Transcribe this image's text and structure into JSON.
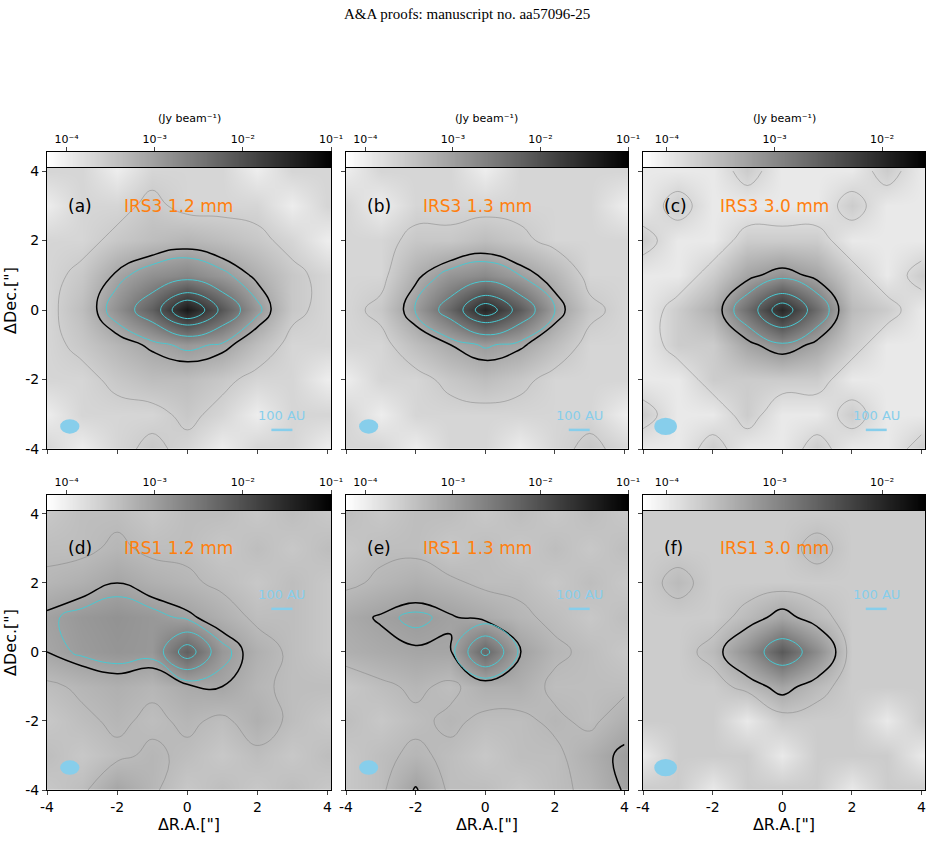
{
  "header": "A&A proofs: manuscript no. aa57096-25",
  "chart_data": [
    {
      "type": "heatmap",
      "panel_label": "(a)",
      "title": "IRS3 1.2 mm",
      "x": [
        -4,
        -3,
        -2,
        -1,
        0,
        1,
        2,
        3,
        4
      ],
      "y": [
        -4,
        -3,
        -2,
        -1,
        0,
        1,
        2,
        3,
        4
      ],
      "z": [
        [
          0.0002,
          0.0001,
          0.0002,
          0.0003,
          0.0002,
          0.0001,
          0.0002,
          0.0002,
          0.0001
        ],
        [
          0.0001,
          0.0002,
          0.0002,
          0.0002,
          0.0003,
          0.0002,
          0.0001,
          0.0002,
          0.0002
        ],
        [
          0.0002,
          0.0002,
          0.0003,
          0.0004,
          0.0004,
          0.0003,
          0.0002,
          0.0002,
          0.0001
        ],
        [
          0.0002,
          0.0003,
          0.0005,
          0.0008,
          0.0012,
          0.0009,
          0.0004,
          0.0002,
          0.0002
        ],
        [
          0.0002,
          0.0004,
          0.0015,
          0.006,
          0.05,
          0.008,
          0.0012,
          0.0003,
          0.0002
        ],
        [
          0.0002,
          0.0003,
          0.0008,
          0.0015,
          0.002,
          0.0012,
          0.0006,
          0.0003,
          0.0002
        ],
        [
          0.0002,
          0.0002,
          0.0003,
          0.0004,
          0.0005,
          0.0004,
          0.0003,
          0.0002,
          0.0001
        ],
        [
          0.0001,
          0.0002,
          0.0002,
          0.0003,
          0.0002,
          0.0002,
          0.0002,
          0.0001,
          0.0002
        ],
        [
          0.0002,
          0.0002,
          0.0001,
          0.0002,
          0.0002,
          0.0002,
          0.0001,
          0.0002,
          0.0002
        ]
      ],
      "xlim": [
        -4,
        4.1
      ],
      "ylim": [
        -4,
        4.55
      ],
      "xticks": [
        -4,
        -2,
        0,
        2,
        4
      ],
      "yticks": [
        -4,
        -2,
        0,
        2,
        4
      ],
      "y_label": "ΔDec.[\"]",
      "tick_labels": "y",
      "colorbar_title": "(Jy beam⁻¹)",
      "colorbar_range": [
        6e-05,
        0.1
      ],
      "colorbar_ticks": [
        {
          "value": 0.0001,
          "label": "10⁻⁴"
        },
        {
          "value": 0.001,
          "label": "10⁻³"
        },
        {
          "value": 0.01,
          "label": "10⁻²"
        },
        {
          "value": 0.1,
          "label": "10⁻¹"
        }
      ],
      "contours": [
        {
          "color": "grey",
          "levels": [
            0.00025
          ]
        },
        {
          "color": "black",
          "levels": [
            0.0007
          ]
        },
        {
          "color": "#48c9d2",
          "levels": [
            0.001,
            0.003,
            0.01,
            0.02
          ]
        }
      ],
      "beam": [
        0.55,
        0.42
      ],
      "scale_bar": {
        "label": "100 AU",
        "length": 0.6
      }
    },
    {
      "type": "heatmap",
      "panel_label": "(b)",
      "title": "IRS3 1.3 mm",
      "x": [
        -4,
        -3,
        -2,
        -1,
        0,
        1,
        2,
        3,
        4
      ],
      "y": [
        -4,
        -3,
        -2,
        -1,
        0,
        1,
        2,
        3,
        4
      ],
      "z": [
        [
          0.0002,
          0.0002,
          0.0001,
          0.0002,
          0.0002,
          0.0001,
          0.0002,
          0.0003,
          0.0002
        ],
        [
          0.0002,
          0.0001,
          0.0002,
          0.0002,
          0.0002,
          0.0002,
          0.0002,
          0.0002,
          0.0001
        ],
        [
          0.0001,
          0.0002,
          0.0002,
          0.0003,
          0.0004,
          0.0003,
          0.0002,
          0.0002,
          0.0002
        ],
        [
          0.0002,
          0.0002,
          0.0004,
          0.0007,
          0.0011,
          0.0008,
          0.0004,
          0.0002,
          0.0002
        ],
        [
          0.0002,
          0.0003,
          0.0011,
          0.005,
          0.035,
          0.007,
          0.001,
          0.0003,
          0.0002
        ],
        [
          0.0002,
          0.0002,
          0.0006,
          0.0013,
          0.0018,
          0.001,
          0.0005,
          0.0002,
          0.0002
        ],
        [
          0.0002,
          0.0002,
          0.0003,
          0.0003,
          0.0004,
          0.0003,
          0.0002,
          0.0002,
          0.0002
        ],
        [
          0.0002,
          0.0001,
          0.0002,
          0.0002,
          0.0002,
          0.0002,
          0.0002,
          0.0002,
          0.0001
        ],
        [
          0.0001,
          0.0002,
          0.0002,
          0.0002,
          0.0001,
          0.0002,
          0.0002,
          0.0002,
          0.0002
        ]
      ],
      "xlim": [
        -4,
        4.1
      ],
      "ylim": [
        -4,
        4.55
      ],
      "xticks": [
        -4,
        -2,
        0,
        2,
        4
      ],
      "yticks": [
        -4,
        -2,
        0,
        2,
        4
      ],
      "tick_labels": false,
      "colorbar_title": "(Jy beam⁻¹)",
      "colorbar_range": [
        6e-05,
        0.1
      ],
      "colorbar_ticks": [
        {
          "value": 0.0001,
          "label": "10⁻⁴"
        },
        {
          "value": 0.001,
          "label": "10⁻³"
        },
        {
          "value": 0.01,
          "label": "10⁻²"
        },
        {
          "value": 0.1,
          "label": "10⁻¹"
        }
      ],
      "contours": [
        {
          "color": "grey",
          "levels": [
            0.00025
          ]
        },
        {
          "color": "black",
          "levels": [
            0.0007
          ]
        },
        {
          "color": "#48c9d2",
          "levels": [
            0.001,
            0.003,
            0.01,
            0.02
          ]
        }
      ],
      "beam": [
        0.55,
        0.42
      ],
      "scale_bar": {
        "label": "100 AU",
        "length": 0.6
      }
    },
    {
      "type": "heatmap",
      "panel_label": "(c)",
      "title": "IRS3 3.0 mm",
      "x": [
        -4,
        -3,
        -2,
        -1,
        0,
        1,
        2,
        3,
        4
      ],
      "y": [
        -4,
        -3,
        -2,
        -1,
        0,
        1,
        2,
        3,
        4
      ],
      "z": [
        [
          0.0001,
          0.0001,
          0.0002,
          0.0001,
          0.0001,
          0.0002,
          0.0001,
          0.0001,
          0.0002
        ],
        [
          0.0002,
          0.0001,
          0.0001,
          0.0002,
          0.0001,
          0.0001,
          0.0002,
          0.0001,
          0.0001
        ],
        [
          0.0001,
          0.0001,
          0.0002,
          0.0002,
          0.0002,
          0.0002,
          0.0001,
          0.0001,
          0.0001
        ],
        [
          0.0001,
          0.0002,
          0.0002,
          0.0005,
          0.0009,
          0.0005,
          0.0002,
          0.0001,
          0.0001
        ],
        [
          0.0001,
          0.0002,
          0.0004,
          0.0018,
          0.01,
          0.0019,
          0.0003,
          0.0002,
          0.0001
        ],
        [
          0.0001,
          0.0001,
          0.0002,
          0.0005,
          0.0008,
          0.0005,
          0.0002,
          0.0001,
          0.0002
        ],
        [
          0.0002,
          0.0001,
          0.0001,
          0.0002,
          0.0002,
          0.0002,
          0.0001,
          0.0001,
          0.0001
        ],
        [
          0.0001,
          0.0002,
          0.0001,
          0.0001,
          0.0001,
          0.0001,
          0.0002,
          0.0001,
          0.0001
        ],
        [
          0.0001,
          0.0001,
          0.0001,
          0.0002,
          0.0001,
          0.0001,
          0.0001,
          0.0002,
          0.0001
        ]
      ],
      "xlim": [
        -4,
        4.1
      ],
      "ylim": [
        -4,
        4.55
      ],
      "xticks": [
        -4,
        -2,
        0,
        2,
        4
      ],
      "yticks": [
        -4,
        -2,
        0,
        2,
        4
      ],
      "tick_labels": false,
      "colorbar_title": "(Jy beam⁻¹)",
      "colorbar_range": [
        6e-05,
        0.025
      ],
      "colorbar_ticks": [
        {
          "value": 0.0001,
          "label": "10⁻⁴"
        },
        {
          "value": 0.001,
          "label": "10⁻³"
        },
        {
          "value": 0.01,
          "label": "10⁻²"
        }
      ],
      "contours": [
        {
          "color": "grey",
          "levels": [
            0.00015
          ]
        },
        {
          "color": "black",
          "levels": [
            0.0006
          ]
        },
        {
          "color": "#48c9d2",
          "levels": [
            0.001,
            0.003,
            0.006
          ]
        }
      ],
      "beam": [
        0.65,
        0.5
      ],
      "scale_bar": {
        "label": "100 AU",
        "length": 0.6
      }
    },
    {
      "type": "heatmap",
      "panel_label": "(d)",
      "title": "IRS1 1.2 mm",
      "x": [
        -4,
        -3,
        -2,
        -1,
        0,
        1,
        2,
        3,
        4
      ],
      "y": [
        -4,
        -3,
        -2,
        -1,
        0,
        1,
        2,
        3,
        4
      ],
      "z": [
        [
          0.0003,
          0.0004,
          0.0008,
          0.0005,
          0.0003,
          0.0004,
          0.0003,
          0.0004,
          0.0003
        ],
        [
          0.0004,
          0.0003,
          0.0004,
          0.0005,
          0.0004,
          0.0003,
          0.0004,
          0.0003,
          0.0004
        ],
        [
          0.0003,
          0.0004,
          0.0005,
          0.0004,
          0.0005,
          0.0004,
          0.0006,
          0.0004,
          0.0003
        ],
        [
          0.0004,
          0.0005,
          0.0006,
          0.0005,
          0.0007,
          0.0008,
          0.0005,
          0.0004,
          0.0004
        ],
        [
          0.0008,
          0.0011,
          0.0013,
          0.0012,
          0.006,
          0.0012,
          0.0006,
          0.0004,
          0.0003
        ],
        [
          0.0009,
          0.0012,
          0.0014,
          0.0012,
          0.0009,
          0.0006,
          0.0004,
          0.0004,
          0.0003
        ],
        [
          0.0005,
          0.0006,
          0.0008,
          0.0006,
          0.0005,
          0.0004,
          0.0003,
          0.0004,
          0.0003
        ],
        [
          0.0004,
          0.0004,
          0.0005,
          0.0004,
          0.0004,
          0.0003,
          0.0004,
          0.0003,
          0.0004
        ],
        [
          0.0003,
          0.0004,
          0.0004,
          0.0003,
          0.0004,
          0.0004,
          0.0003,
          0.0004,
          0.0003
        ]
      ],
      "xlim": [
        -4,
        4.1
      ],
      "ylim": [
        -4,
        4.55
      ],
      "xticks": [
        -4,
        -2,
        0,
        2,
        4
      ],
      "yticks": [
        -4,
        -2,
        0,
        2,
        4
      ],
      "x_label": "ΔR.A.[\"]",
      "y_label": "ΔDec.[\"]",
      "tick_labels": true,
      "colorbar_range": [
        6e-05,
        0.1
      ],
      "colorbar_ticks": [
        {
          "value": 0.0001,
          "label": "10⁻⁴"
        },
        {
          "value": 0.001,
          "label": "10⁻³"
        },
        {
          "value": 0.01,
          "label": "10⁻²"
        },
        {
          "value": 0.1,
          "label": "10⁻¹"
        }
      ],
      "contours": [
        {
          "color": "grey",
          "levels": [
            0.00045
          ]
        },
        {
          "color": "black",
          "levels": [
            0.0008
          ]
        },
        {
          "color": "#48c9d2",
          "levels": [
            0.001,
            0.002,
            0.004
          ]
        }
      ],
      "beam": [
        0.55,
        0.42
      ],
      "scale_bar": {
        "label": "100 AU",
        "length": 0.6
      }
    },
    {
      "type": "heatmap",
      "panel_label": "(e)",
      "title": "IRS1 1.3 mm",
      "x": [
        -4,
        -3,
        -2,
        -1,
        0,
        1,
        2,
        3,
        4
      ],
      "y": [
        -4,
        -3,
        -2,
        -1,
        0,
        1,
        2,
        3,
        4
      ],
      "z": [
        [
          0.0003,
          0.0004,
          0.0009,
          0.0004,
          0.0004,
          0.0003,
          0.0004,
          0.0005,
          0.0009
        ],
        [
          0.0003,
          0.0004,
          0.0005,
          0.0004,
          0.0003,
          0.0004,
          0.0004,
          0.0006,
          0.001
        ],
        [
          0.0004,
          0.0003,
          0.0004,
          0.0005,
          0.0004,
          0.0004,
          0.0005,
          0.0004,
          0.0006
        ],
        [
          0.0003,
          0.0004,
          0.0005,
          0.0004,
          0.0006,
          0.0006,
          0.0004,
          0.0004,
          0.0004
        ],
        [
          0.0006,
          0.0007,
          0.0008,
          0.0008,
          0.005,
          0.0009,
          0.0005,
          0.0004,
          0.0003
        ],
        [
          0.0007,
          0.0009,
          0.0011,
          0.0009,
          0.0007,
          0.0005,
          0.0004,
          0.0003,
          0.0004
        ],
        [
          0.0004,
          0.0005,
          0.0006,
          0.0005,
          0.0004,
          0.0004,
          0.0003,
          0.0004,
          0.0003
        ],
        [
          0.0003,
          0.0004,
          0.0004,
          0.0003,
          0.0004,
          0.0003,
          0.0004,
          0.0003,
          0.0004
        ],
        [
          0.0004,
          0.0003,
          0.0004,
          0.0004,
          0.0003,
          0.0004,
          0.0003,
          0.0004,
          0.0003
        ]
      ],
      "xlim": [
        -4,
        4.1
      ],
      "ylim": [
        -4,
        4.55
      ],
      "xticks": [
        -4,
        -2,
        0,
        2,
        4
      ],
      "yticks": [
        -4,
        -2,
        0,
        2,
        4
      ],
      "x_label": "ΔR.A.[\"]",
      "tick_labels": "x",
      "colorbar_range": [
        6e-05,
        0.1
      ],
      "colorbar_ticks": [
        {
          "value": 0.0001,
          "label": "10⁻⁴"
        },
        {
          "value": 0.001,
          "label": "10⁻³"
        },
        {
          "value": 0.01,
          "label": "10⁻²"
        },
        {
          "value": 0.1,
          "label": "10⁻¹"
        }
      ],
      "contours": [
        {
          "color": "grey",
          "levels": [
            0.00045
          ]
        },
        {
          "color": "black",
          "levels": [
            0.00085
          ]
        },
        {
          "color": "#48c9d2",
          "levels": [
            0.001,
            0.002,
            0.004
          ]
        }
      ],
      "beam": [
        0.55,
        0.42
      ],
      "scale_bar": {
        "label": "100 AU",
        "length": 0.6
      }
    },
    {
      "type": "heatmap",
      "panel_label": "(f)",
      "title": "IRS1 3.0 mm",
      "x": [
        -4,
        -3,
        -2,
        -1,
        0,
        1,
        2,
        3,
        4
      ],
      "y": [
        -4,
        -3,
        -2,
        -1,
        0,
        1,
        2,
        3,
        4
      ],
      "z": [
        [
          0.0002,
          0.0002,
          0.0001,
          0.0002,
          0.0002,
          0.0002,
          0.0001,
          0.0002,
          0.0002
        ],
        [
          0.0001,
          0.0002,
          0.0002,
          0.0002,
          0.0001,
          0.0002,
          0.0002,
          0.0002,
          0.0001
        ],
        [
          0.0002,
          0.0002,
          0.0002,
          0.0001,
          0.0002,
          0.0002,
          0.0002,
          0.0001,
          0.0002
        ],
        [
          0.0002,
          0.0002,
          0.0002,
          0.0003,
          0.0005,
          0.0003,
          0.0002,
          0.0002,
          0.0002
        ],
        [
          0.0002,
          0.0002,
          0.0003,
          0.0008,
          0.003,
          0.0009,
          0.0002,
          0.0002,
          0.0002
        ],
        [
          0.0002,
          0.0002,
          0.0002,
          0.0003,
          0.0005,
          0.0003,
          0.0002,
          0.0002,
          0.0002
        ],
        [
          0.0002,
          0.0003,
          0.0002,
          0.0002,
          0.0002,
          0.0002,
          0.0002,
          0.0002,
          0.0002
        ],
        [
          0.0002,
          0.0002,
          0.0002,
          0.0002,
          0.0002,
          0.0003,
          0.0002,
          0.0002,
          0.0002
        ],
        [
          0.0002,
          0.0002,
          0.0002,
          0.0002,
          0.0002,
          0.0002,
          0.0002,
          0.0002,
          0.0002
        ]
      ],
      "xlim": [
        -4,
        4.1
      ],
      "ylim": [
        -4,
        4.55
      ],
      "xticks": [
        -4,
        -2,
        0,
        2,
        4
      ],
      "yticks": [
        -4,
        -2,
        0,
        2,
        4
      ],
      "x_label": "ΔR.A.[\"]",
      "tick_labels": "x",
      "colorbar_range": [
        6e-05,
        0.025
      ],
      "colorbar_ticks": [
        {
          "value": 0.0001,
          "label": "10⁻⁴"
        },
        {
          "value": 0.001,
          "label": "10⁻³"
        },
        {
          "value": 0.01,
          "label": "10⁻²"
        }
      ],
      "contours": [
        {
          "color": "grey",
          "levels": [
            0.00025
          ]
        },
        {
          "color": "black",
          "levels": [
            0.0004
          ]
        },
        {
          "color": "#48c9d2",
          "levels": [
            0.0015
          ]
        }
      ],
      "beam": [
        0.65,
        0.5
      ],
      "scale_bar": {
        "label": "100 AU",
        "length": 0.6
      }
    }
  ]
}
